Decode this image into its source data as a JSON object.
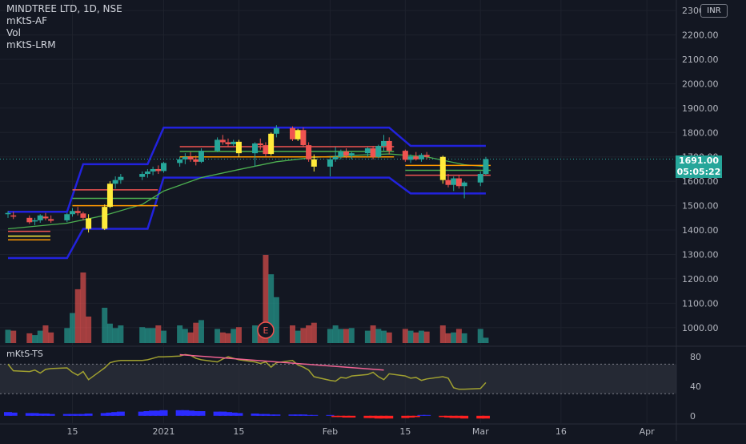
{
  "legend": {
    "symbol_line": "MINDTREE LTD, 1D, NSE",
    "ind1": "mKtS-AF",
    "ind2": "Vol",
    "ind3": "mKtS-LRM"
  },
  "currency": "INR",
  "last_price": {
    "price": "1691.00",
    "countdown": "05:05:22",
    "color": "#26a69a"
  },
  "earnings_marker": "E",
  "ts_label": "mKtS-TS",
  "colors": {
    "background": "#131722",
    "up": "#26a69a",
    "down": "#ef5350",
    "highlight": "#ffeb3b",
    "channel": "#2222dd",
    "ma": "#4caf50",
    "volume_up": "#26a69a",
    "volume_down": "#ef5350",
    "oscillator": "#a0a030",
    "trendline": "#f06292"
  },
  "chart_data": [
    {
      "type": "candlestick",
      "title": "MINDTREE LTD, 1D, NSE",
      "y_axis": {
        "ticks": [
          "2300.00",
          "2200.00",
          "2100.00",
          "2000.00",
          "1900.00",
          "1800.00",
          "1700.00",
          "1600.00",
          "1500.00",
          "1400.00",
          "1300.00",
          "1200.00",
          "1100.00",
          "1000.00"
        ],
        "range": [
          950,
          2330
        ]
      },
      "x_axis": {
        "ticks": [
          "15",
          "2021",
          "15",
          "Feb",
          "15",
          "Mar",
          "16",
          "Apr"
        ],
        "range": [
          "2020-12-03",
          "2021-04-05"
        ]
      },
      "ohlc": [
        [
          "2020-12-03",
          1465,
          1478,
          1450,
          1470
        ],
        [
          "2020-12-04",
          1460,
          1475,
          1445,
          1455
        ],
        [
          "2020-12-07",
          1450,
          1460,
          1425,
          1432
        ],
        [
          "2020-12-08",
          1435,
          1450,
          1420,
          1440
        ],
        [
          "2020-12-09",
          1440,
          1465,
          1430,
          1460
        ],
        [
          "2020-12-10",
          1455,
          1470,
          1440,
          1448
        ],
        [
          "2020-12-11",
          1445,
          1460,
          1430,
          1438
        ],
        [
          "2020-12-14",
          1440,
          1470,
          1432,
          1465
        ],
        [
          "2020-12-15",
          1465,
          1490,
          1455,
          1478
        ],
        [
          "2020-12-16",
          1478,
          1495,
          1460,
          1470
        ],
        [
          "2020-12-17",
          1468,
          1475,
          1440,
          1450
        ],
        [
          "2020-12-18",
          1448,
          1465,
          1390,
          1405
        ],
        [
          "2020-12-21",
          1405,
          1505,
          1400,
          1495
        ],
        [
          "2020-12-22",
          1495,
          1600,
          1490,
          1590
        ],
        [
          "2020-12-23",
          1590,
          1620,
          1570,
          1605
        ],
        [
          "2020-12-24",
          1605,
          1630,
          1590,
          1618
        ],
        [
          "2020-12-28",
          1618,
          1640,
          1605,
          1630
        ],
        [
          "2020-12-29",
          1630,
          1650,
          1615,
          1640
        ],
        [
          "2020-12-30",
          1640,
          1660,
          1625,
          1650
        ],
        [
          "2020-12-31",
          1650,
          1665,
          1630,
          1642
        ],
        [
          "2021-01-01",
          1642,
          1680,
          1635,
          1675
        ],
        [
          "2021-01-04",
          1675,
          1700,
          1660,
          1690
        ],
        [
          "2021-01-05",
          1690,
          1715,
          1670,
          1700
        ],
        [
          "2021-01-06",
          1700,
          1720,
          1680,
          1690
        ],
        [
          "2021-01-07",
          1690,
          1705,
          1665,
          1680
        ],
        [
          "2021-01-08",
          1680,
          1735,
          1675,
          1725
        ],
        [
          "2021-01-11",
          1725,
          1780,
          1720,
          1770
        ],
        [
          "2021-01-12",
          1770,
          1790,
          1750,
          1760
        ],
        [
          "2021-01-13",
          1760,
          1775,
          1740,
          1752
        ],
        [
          "2021-01-14",
          1752,
          1770,
          1745,
          1762
        ],
        [
          "2021-01-15",
          1762,
          1770,
          1700,
          1715
        ],
        [
          "2021-01-18",
          1715,
          1760,
          1660,
          1755
        ],
        [
          "2021-01-19",
          1755,
          1775,
          1730,
          1748
        ],
        [
          "2021-01-20",
          1748,
          1760,
          1700,
          1712
        ],
        [
          "2021-01-21",
          1712,
          1800,
          1705,
          1795
        ],
        [
          "2021-01-22",
          1795,
          1830,
          1780,
          1818
        ],
        [
          "2021-01-25",
          1818,
          1825,
          1765,
          1772
        ],
        [
          "2021-01-26",
          1772,
          1815,
          1765,
          1810
        ],
        [
          "2021-01-27",
          1810,
          1820,
          1740,
          1748
        ],
        [
          "2021-01-28",
          1748,
          1760,
          1680,
          1690
        ],
        [
          "2021-01-29",
          1690,
          1710,
          1640,
          1660
        ],
        [
          "2021-02-01",
          1660,
          1700,
          1620,
          1690
        ],
        [
          "2021-02-02",
          1690,
          1740,
          1680,
          1700
        ],
        [
          "2021-02-03",
          1700,
          1730,
          1690,
          1722
        ],
        [
          "2021-02-04",
          1722,
          1735,
          1695,
          1705
        ],
        [
          "2021-02-05",
          1705,
          1720,
          1690,
          1715
        ],
        [
          "2021-02-08",
          1715,
          1740,
          1700,
          1735
        ],
        [
          "2021-02-09",
          1735,
          1745,
          1690,
          1700
        ],
        [
          "2021-02-10",
          1700,
          1750,
          1695,
          1745
        ],
        [
          "2021-02-11",
          1745,
          1790,
          1725,
          1765
        ],
        [
          "2021-02-12",
          1765,
          1780,
          1710,
          1725
        ],
        [
          "2021-02-15",
          1725,
          1730,
          1680,
          1688
        ],
        [
          "2021-02-16",
          1688,
          1710,
          1675,
          1702
        ],
        [
          "2021-02-17",
          1702,
          1720,
          1685,
          1690
        ],
        [
          "2021-02-18",
          1690,
          1715,
          1680,
          1708
        ],
        [
          "2021-02-19",
          1708,
          1720,
          1690,
          1700
        ],
        [
          "2021-02-22",
          1700,
          1705,
          1590,
          1605
        ],
        [
          "2021-02-23",
          1605,
          1630,
          1575,
          1585
        ],
        [
          "2021-02-24",
          1585,
          1620,
          1560,
          1612
        ],
        [
          "2021-02-25",
          1612,
          1625,
          1570,
          1580
        ],
        [
          "2021-02-26",
          1580,
          1600,
          1530,
          1595
        ],
        [
          "2021-03-01",
          1595,
          1640,
          1580,
          1630
        ],
        [
          "2021-03-02",
          1630,
          1700,
          1625,
          1691
        ]
      ],
      "highlighted_candles": [
        "2020-12-18",
        "2020-12-21",
        "2020-12-22",
        "2021-01-15",
        "2021-01-21",
        "2021-01-26",
        "2021-01-29",
        "2021-02-22"
      ],
      "channel_upper": [
        [
          "2020-12-03",
          1475
        ],
        [
          "2020-12-14",
          1475
        ],
        [
          "2020-12-17",
          1670
        ],
        [
          "2020-12-29",
          1670
        ],
        [
          "2021-01-01",
          1820
        ],
        [
          "2021-02-12",
          1820
        ],
        [
          "2021-02-16",
          1745
        ],
        [
          "2021-03-02",
          1745
        ]
      ],
      "channel_lower": [
        [
          "2020-12-03",
          1285
        ],
        [
          "2020-12-14",
          1285
        ],
        [
          "2020-12-17",
          1405
        ],
        [
          "2020-12-29",
          1405
        ],
        [
          "2021-01-01",
          1615
        ],
        [
          "2021-02-12",
          1615
        ],
        [
          "2021-02-16",
          1550
        ],
        [
          "2021-03-02",
          1550
        ]
      ],
      "moving_average": [
        [
          "2020-12-03",
          1405
        ],
        [
          "2020-12-14",
          1428
        ],
        [
          "2020-12-21",
          1460
        ],
        [
          "2020-12-28",
          1505
        ],
        [
          "2021-01-01",
          1560
        ],
        [
          "2021-01-08",
          1615
        ],
        [
          "2021-01-15",
          1648
        ],
        [
          "2021-01-22",
          1680
        ],
        [
          "2021-01-29",
          1698
        ],
        [
          "2021-02-05",
          1706
        ],
        [
          "2021-02-12",
          1712
        ],
        [
          "2021-02-19",
          1700
        ],
        [
          "2021-02-26",
          1668
        ],
        [
          "2021-03-02",
          1660
        ]
      ],
      "support_resistance": [
        {
          "start": "2020-12-03",
          "end": "2020-12-10",
          "y": 1360,
          "color": "#ff9800"
        },
        {
          "start": "2020-12-03",
          "end": "2020-12-10",
          "y": 1375,
          "color": "#ffeb3b"
        },
        {
          "start": "2020-12-03",
          "end": "2020-12-10",
          "y": 1395,
          "color": "#ef5350"
        },
        {
          "start": "2020-12-15",
          "end": "2020-12-30",
          "y": 1500,
          "color": "#ff9800"
        },
        {
          "start": "2020-12-15",
          "end": "2020-12-30",
          "y": 1530,
          "color": "#4caf50"
        },
        {
          "start": "2020-12-15",
          "end": "2020-12-30",
          "y": 1565,
          "color": "#ef5350"
        },
        {
          "start": "2021-01-04",
          "end": "2021-02-12",
          "y": 1700,
          "color": "#ff9800"
        },
        {
          "start": "2021-01-04",
          "end": "2021-02-12",
          "y": 1722,
          "color": "#4caf50"
        },
        {
          "start": "2021-01-04",
          "end": "2021-02-12",
          "y": 1742,
          "color": "#ef5350"
        },
        {
          "start": "2021-02-15",
          "end": "2021-03-02",
          "y": 1625,
          "color": "#ef5350"
        },
        {
          "start": "2021-02-15",
          "end": "2021-03-02",
          "y": 1645,
          "color": "#4caf50"
        },
        {
          "start": "2021-02-15",
          "end": "2021-03-02",
          "y": 1665,
          "color": "#ff9800"
        }
      ]
    },
    {
      "type": "bar",
      "name": "Vol",
      "relative_values": [
        0.15,
        0.14,
        0.11,
        0.09,
        0.14,
        0.2,
        0.12,
        0.17,
        0.34,
        0.61,
        0.8,
        0.3,
        0.4,
        0.22,
        0.17,
        0.2,
        0.18,
        0.17,
        0.17,
        0.2,
        0.14,
        0.2,
        0.16,
        0.12,
        0.23,
        0.26,
        0.16,
        0.12,
        0.11,
        0.16,
        0.18,
        0.2,
        0.18,
        1.0,
        0.78,
        0.52,
        0.2,
        0.14,
        0.17,
        0.2,
        0.23,
        0.16,
        0.2,
        0.16,
        0.16,
        0.17,
        0.14,
        0.2,
        0.16,
        0.14,
        0.12,
        0.16,
        0.14,
        0.12,
        0.14,
        0.13,
        0.2,
        0.11,
        0.12,
        0.16,
        0.11,
        0.16,
        0.06
      ],
      "earnings_date": "2021-01-20"
    },
    {
      "type": "line",
      "name": "mKtS-TS",
      "y_axis": {
        "ticks": [
          "80",
          "40",
          "0"
        ],
        "range": [
          -10,
          90
        ]
      },
      "band": [
        30,
        70
      ],
      "values": [
        70,
        61,
        60,
        62,
        58,
        63,
        64,
        65,
        59,
        55,
        60,
        49,
        65,
        72,
        74,
        75,
        75,
        76,
        78,
        80,
        80,
        81,
        83,
        82,
        78,
        76,
        73,
        77,
        80,
        78,
        76,
        73,
        71,
        73,
        66,
        72,
        75,
        69,
        66,
        62,
        53,
        48,
        47,
        52,
        51,
        54,
        56,
        59,
        53,
        49,
        57,
        54,
        51,
        52,
        48,
        50,
        53,
        51,
        38,
        36,
        36,
        37,
        45
      ],
      "trendline": [
        [
          "2021-01-04",
          83
        ],
        [
          "2021-02-11",
          62
        ]
      ],
      "histogram": [
        6,
        5,
        4,
        4,
        3,
        3,
        2,
        2,
        2,
        2,
        2,
        3,
        4,
        5,
        6,
        7,
        7,
        8,
        9,
        9,
        10,
        10,
        10,
        9,
        8,
        8,
        7,
        7,
        6,
        5,
        4,
        3,
        2,
        2,
        1,
        1,
        1,
        1,
        1,
        0,
        0,
        0,
        -1,
        -1,
        -2,
        -2,
        -3,
        -3,
        -4,
        -4,
        -4,
        -3,
        -2,
        -1,
        0,
        0,
        -1,
        -2,
        -3,
        -3,
        -4,
        -4,
        -4
      ]
    }
  ]
}
